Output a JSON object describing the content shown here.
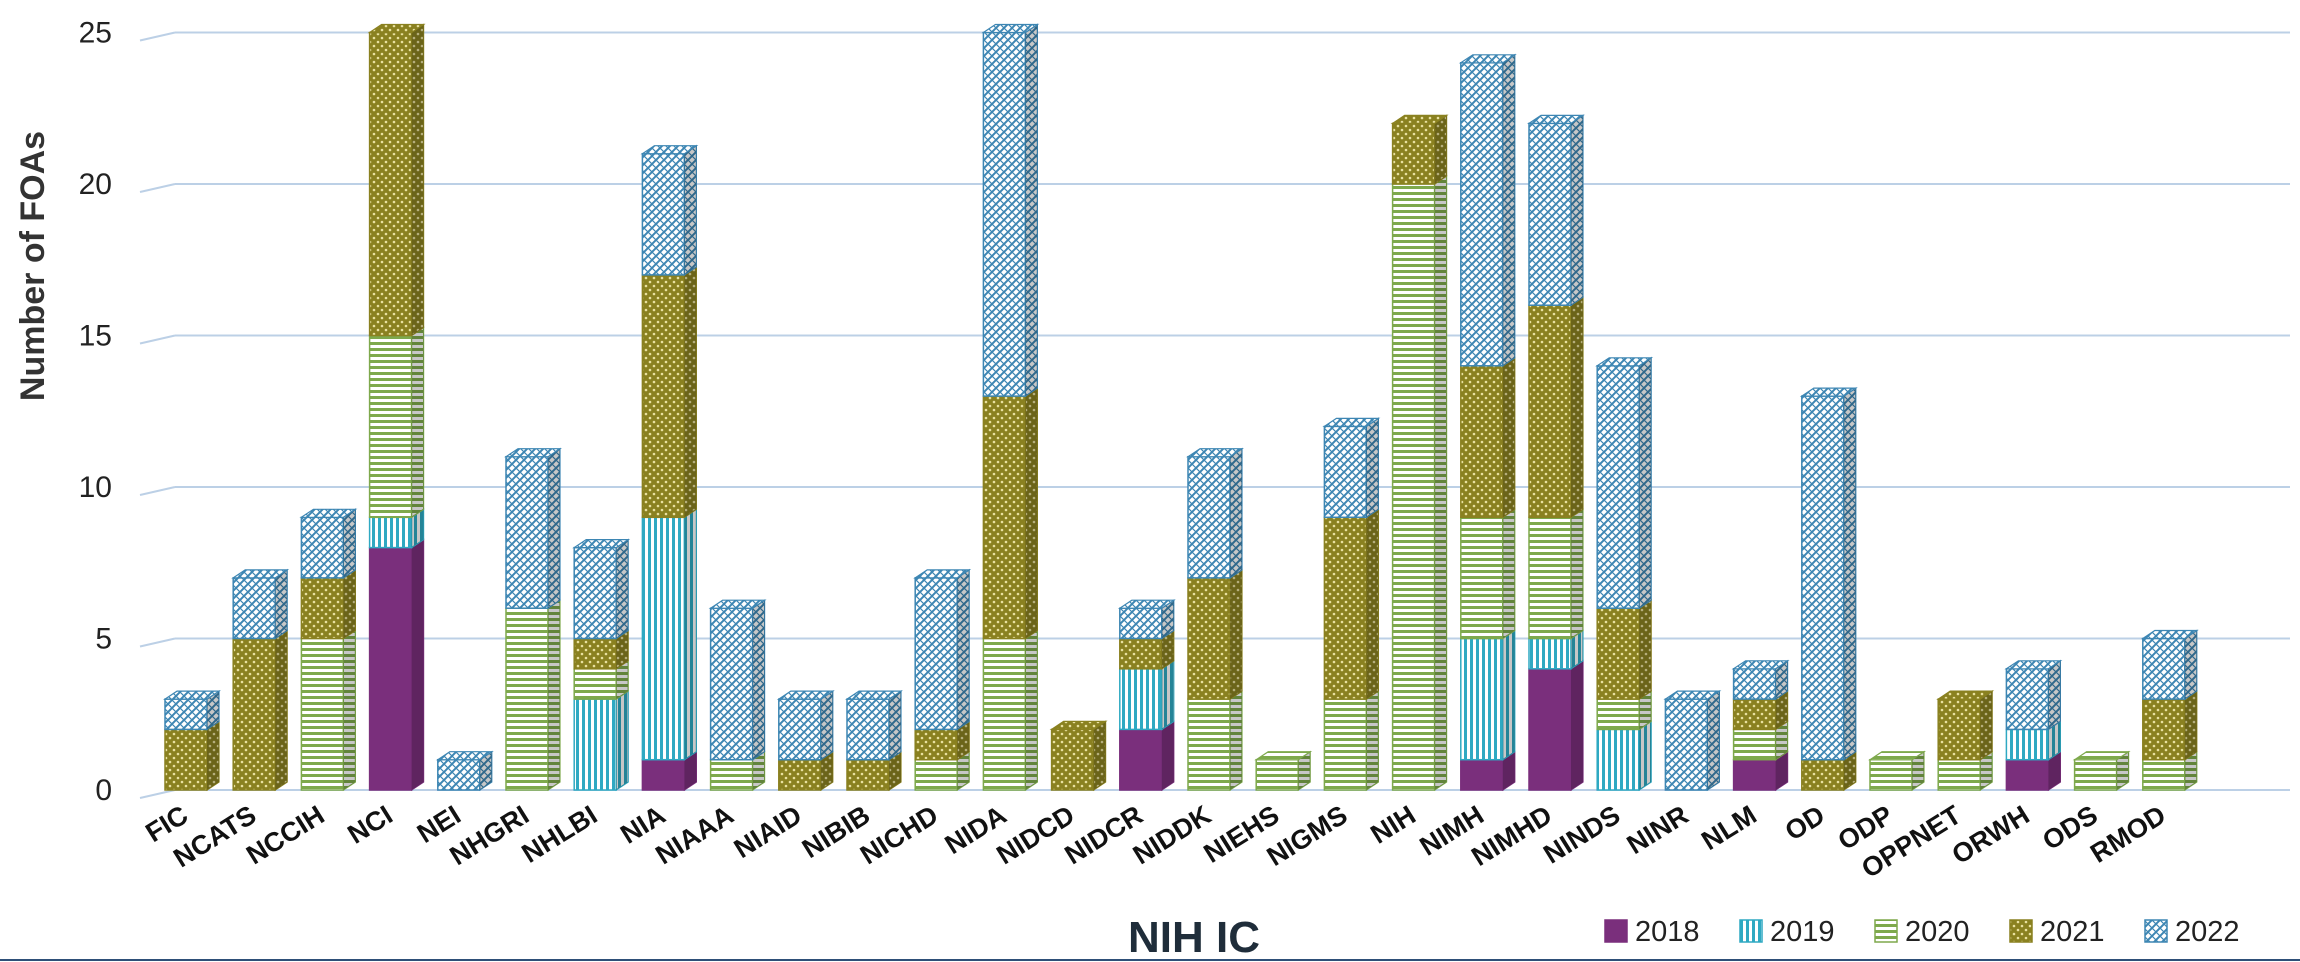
{
  "chart_data": {
    "type": "bar",
    "stacked": true,
    "title": "",
    "xlabel": "NIH IC",
    "ylabel": "Number of FOAs",
    "ylim": [
      0,
      25
    ],
    "yticks": [
      0,
      5,
      10,
      15,
      20,
      25
    ],
    "grid": true,
    "legend_position": "bottom-right",
    "categories": [
      "FIC",
      "NCATS",
      "NCCIH",
      "NCI",
      "NEI",
      "NHGRI",
      "NHLBI",
      "NIA",
      "NIAAA",
      "NIAID",
      "NIBIB",
      "NICHD",
      "NIDA",
      "NIDCD",
      "NIDCR",
      "NIDDK",
      "NIEHS",
      "NIGMS",
      "NIH",
      "NIMH",
      "NIMHD",
      "NINDS",
      "NINR",
      "NLM",
      "OD",
      "ODP",
      "OPPNET",
      "ORWH",
      "ODS",
      "RMOD"
    ],
    "series": [
      {
        "name": "2018",
        "color": "#7a2f7c",
        "pattern": "solid",
        "values": [
          0,
          0,
          0,
          8,
          0,
          0,
          0,
          1,
          0,
          0,
          0,
          0,
          0,
          0,
          2,
          0,
          0,
          0,
          0,
          1,
          4,
          0,
          0,
          1,
          0,
          0,
          0,
          1,
          0,
          0
        ]
      },
      {
        "name": "2019",
        "color": "#2fa9c2",
        "pattern": "vertical-lines",
        "values": [
          0,
          0,
          0,
          1,
          0,
          0,
          3,
          8,
          0,
          0,
          0,
          0,
          0,
          0,
          2,
          0,
          0,
          0,
          0,
          4,
          1,
          2,
          0,
          0,
          0,
          0,
          0,
          1,
          0,
          0
        ]
      },
      {
        "name": "2020",
        "color": "#7ea94c",
        "pattern": "horizontal-lines",
        "values": [
          0,
          0,
          5,
          6,
          0,
          6,
          1,
          0,
          1,
          0,
          0,
          1,
          5,
          0,
          0,
          3,
          1,
          3,
          20,
          4,
          4,
          1,
          0,
          1,
          0,
          1,
          1,
          0,
          1,
          1
        ]
      },
      {
        "name": "2021",
        "color": "#8a8120",
        "pattern": "dots",
        "values": [
          2,
          5,
          2,
          10,
          0,
          0,
          1,
          8,
          0,
          1,
          1,
          1,
          8,
          2,
          1,
          4,
          0,
          6,
          2,
          5,
          7,
          3,
          0,
          1,
          1,
          0,
          2,
          0,
          0,
          2
        ]
      },
      {
        "name": "2022",
        "color": "#3d86b3",
        "pattern": "diagonal-crosshatch",
        "values": [
          1,
          2,
          2,
          0,
          1,
          5,
          3,
          4,
          5,
          2,
          2,
          5,
          12,
          0,
          1,
          4,
          0,
          3,
          0,
          10,
          6,
          8,
          3,
          1,
          12,
          0,
          0,
          2,
          0,
          2
        ]
      }
    ]
  }
}
